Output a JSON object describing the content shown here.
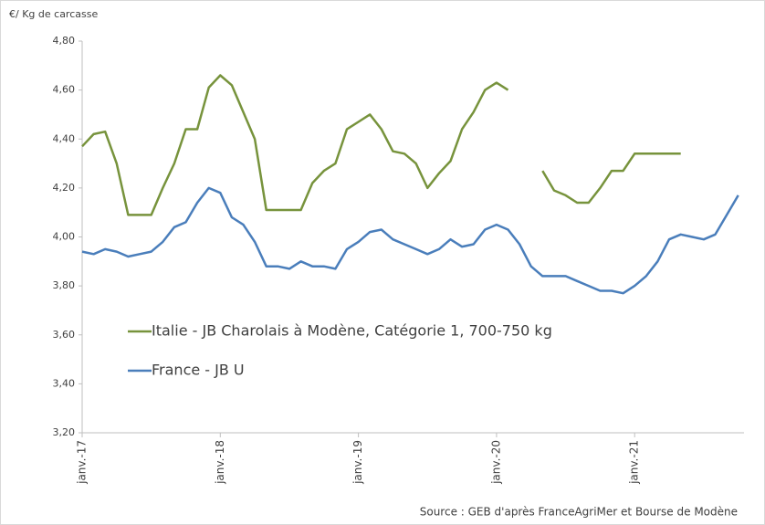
{
  "chart_data": {
    "type": "line",
    "y_axis_label": "€/ Kg de carcasse",
    "source": "Source : GEB d'après FranceAgriMer et Bourse de Modène",
    "categories": [
      "janv.-17",
      null,
      null,
      null,
      null,
      null,
      null,
      null,
      null,
      null,
      null,
      null,
      "janv.-18",
      null,
      null,
      null,
      null,
      null,
      null,
      null,
      null,
      null,
      null,
      null,
      "janv.-19",
      null,
      null,
      null,
      null,
      null,
      null,
      null,
      null,
      null,
      null,
      null,
      "janv.-20",
      null,
      null,
      null,
      null,
      null,
      null,
      null,
      null,
      null,
      null,
      null,
      "janv.-21",
      null,
      null,
      null,
      null,
      null,
      null,
      null,
      null,
      null
    ],
    "series": [
      {
        "name": "Italie - JB Charolais à Modène, Catégorie 1, 700-750 kg",
        "color": "#77933c",
        "values": [
          4.37,
          4.42,
          4.43,
          4.3,
          4.09,
          4.09,
          4.09,
          4.2,
          4.3,
          4.44,
          4.44,
          4.61,
          4.66,
          4.62,
          4.51,
          4.4,
          4.11,
          4.11,
          4.11,
          4.11,
          4.22,
          4.27,
          4.3,
          4.44,
          4.47,
          4.5,
          4.44,
          4.35,
          4.34,
          4.3,
          4.2,
          4.26,
          4.31,
          4.44,
          4.51,
          4.6,
          4.63,
          4.6,
          null,
          null,
          4.27,
          4.19,
          4.17,
          4.14,
          4.14,
          4.2,
          4.27,
          4.27,
          4.34,
          4.34,
          4.34,
          4.34,
          4.34,
          null,
          null,
          null,
          null,
          null
        ]
      },
      {
        "name": "France - JB U",
        "color": "#4a7ebb",
        "values": [
          3.94,
          3.93,
          3.95,
          3.94,
          3.92,
          3.93,
          3.94,
          3.98,
          4.04,
          4.06,
          4.14,
          4.2,
          4.18,
          4.08,
          4.05,
          3.98,
          3.88,
          3.88,
          3.87,
          3.9,
          3.88,
          3.88,
          3.87,
          3.95,
          3.98,
          4.02,
          4.03,
          3.99,
          3.97,
          3.95,
          3.93,
          3.95,
          3.99,
          3.96,
          3.97,
          4.03,
          4.05,
          4.03,
          3.97,
          3.88,
          3.84,
          3.84,
          3.84,
          3.82,
          3.8,
          3.78,
          3.78,
          3.77,
          3.8,
          3.84,
          3.9,
          3.99,
          4.01,
          4.0,
          3.99,
          4.01,
          4.09,
          4.17
        ]
      }
    ],
    "ylim": [
      3.2,
      4.8
    ],
    "yticks": [
      {
        "value": 3.2,
        "label": "3,20"
      },
      {
        "value": 3.4,
        "label": "3,40"
      },
      {
        "value": 3.6,
        "label": "3,60"
      },
      {
        "value": 3.8,
        "label": "3,80"
      },
      {
        "value": 4.0,
        "label": "4,00"
      },
      {
        "value": 4.2,
        "label": "4,20"
      },
      {
        "value": 4.4,
        "label": "4,40"
      },
      {
        "value": 4.6,
        "label": "4,60"
      },
      {
        "value": 4.8,
        "label": "4,80"
      }
    ],
    "grid": false
  }
}
